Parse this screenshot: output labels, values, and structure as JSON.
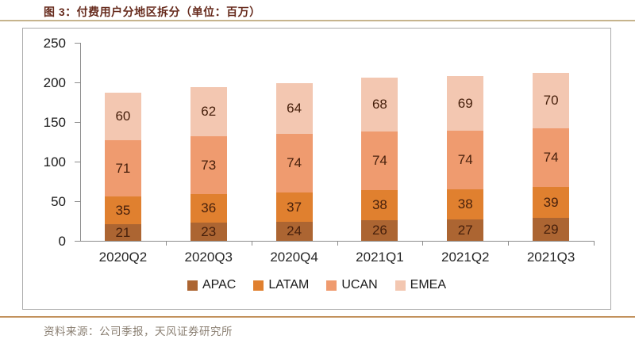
{
  "title": "图 3：付费用户分地区拆分（单位：百万）",
  "source": "资料来源：公司季报，天风证券研究所",
  "colors": {
    "title_text": "#662a1c",
    "top_rule": "#c6b48d",
    "bottom_rule": "#c2915c",
    "source_text": "#8a7f72",
    "bar_value_text": "#47200c"
  },
  "chart_data": {
    "type": "bar",
    "stacked": true,
    "title": "付费用户分地区拆分",
    "unit": "百万",
    "categories": [
      "2020Q2",
      "2020Q3",
      "2020Q4",
      "2021Q1",
      "2021Q2",
      "2021Q3"
    ],
    "series": [
      {
        "name": "APAC",
        "color": "#ac6532",
        "values": [
          21,
          23,
          24,
          26,
          27,
          29
        ]
      },
      {
        "name": "LATAM",
        "color": "#e0802f",
        "values": [
          35,
          36,
          37,
          38,
          38,
          39
        ]
      },
      {
        "name": "UCAN",
        "color": "#ef9b6f",
        "values": [
          71,
          73,
          74,
          74,
          74,
          74
        ]
      },
      {
        "name": "EMEA",
        "color": "#f3c7b1",
        "values": [
          60,
          62,
          64,
          68,
          69,
          70
        ]
      }
    ],
    "totals": [
      187,
      194,
      199,
      206,
      208,
      212
    ],
    "y_ticks": [
      0,
      50,
      100,
      150,
      200,
      250
    ],
    "ylim": [
      0,
      250
    ],
    "grid": false,
    "legend_position": "bottom"
  }
}
